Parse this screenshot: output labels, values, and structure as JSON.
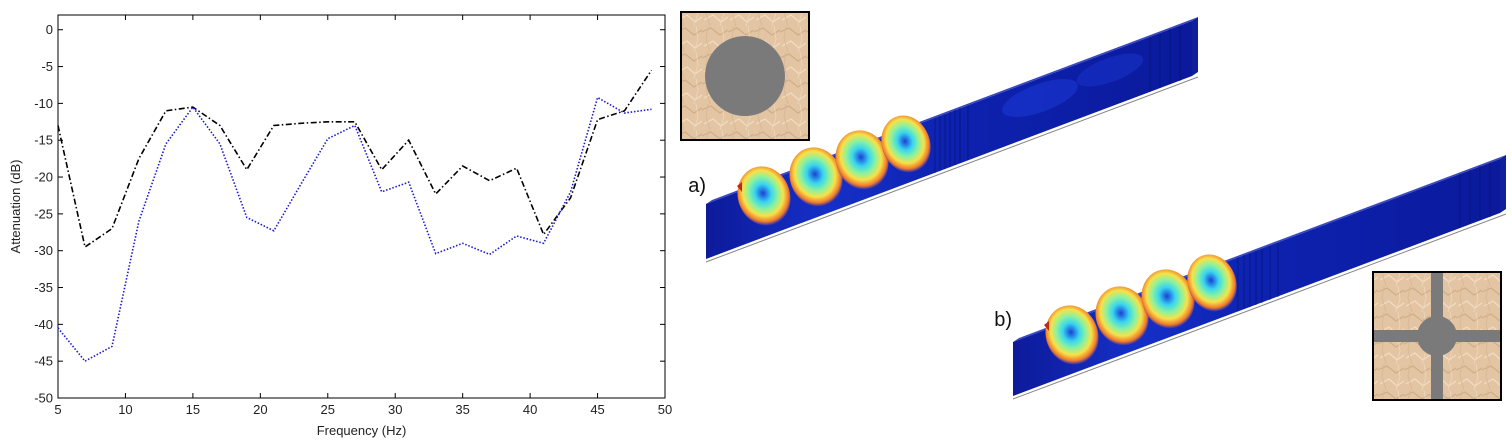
{
  "chart_data": {
    "type": "line",
    "title": "",
    "xlabel": "Frequency (Hz)",
    "ylabel": "Attenuation (dB)",
    "xlim": [
      5,
      50
    ],
    "ylim": [
      -50,
      2
    ],
    "xticks": [
      "5",
      "10",
      "15",
      "20",
      "25",
      "30",
      "35",
      "40",
      "45",
      "50"
    ],
    "xtick_values": [
      5,
      10,
      15,
      20,
      25,
      30,
      35,
      40,
      45,
      50
    ],
    "yticks": [
      "0",
      "-5",
      "-10",
      "-15",
      "-20",
      "-25",
      "-30",
      "-35",
      "-40",
      "-45",
      "-50"
    ],
    "ytick_values": [
      0,
      -5,
      -10,
      -15,
      -20,
      -25,
      -30,
      -35,
      -40,
      -45,
      -50
    ],
    "grid": false,
    "series": [
      {
        "color": "#000000",
        "style": "dash-dot",
        "x": [
          5,
          7,
          9,
          11,
          13,
          15,
          17,
          19,
          21,
          23,
          25,
          27,
          29,
          31,
          33,
          35,
          37,
          39,
          41,
          43,
          45,
          47,
          49
        ],
        "y": [
          -13,
          -29.5,
          -27,
          -17.5,
          -11,
          -10.5,
          -13,
          -19,
          -13,
          -12.7,
          -12.5,
          -12.5,
          -19,
          -15,
          -22.3,
          -18.5,
          -20.5,
          -18.8,
          -27.8,
          -22.8,
          -12.2,
          -11,
          -5.5
        ]
      },
      {
        "color": "#1a1ad0",
        "style": "dotted",
        "x": [
          5,
          7,
          9,
          11,
          13,
          15,
          17,
          19,
          21,
          23,
          25,
          27,
          29,
          31,
          33,
          35,
          37,
          39,
          41,
          43,
          45,
          47,
          49
        ],
        "y": [
          -40.5,
          -45,
          -43,
          -26,
          -15.5,
          -10.5,
          -15.5,
          -25.5,
          -27.3,
          -21,
          -14.8,
          -13,
          -22,
          -20.7,
          -30.4,
          -29,
          -30.5,
          -28,
          -29,
          -22,
          -9.2,
          -11.3,
          -10.8
        ]
      }
    ]
  },
  "panels": {
    "a_label": "a)",
    "b_label": "b)"
  },
  "colors": {
    "texture": "#e3c5a3",
    "inclusion": "#7a7a7a",
    "field_low": "#0a1db8",
    "field_high": "#f07a2a"
  }
}
